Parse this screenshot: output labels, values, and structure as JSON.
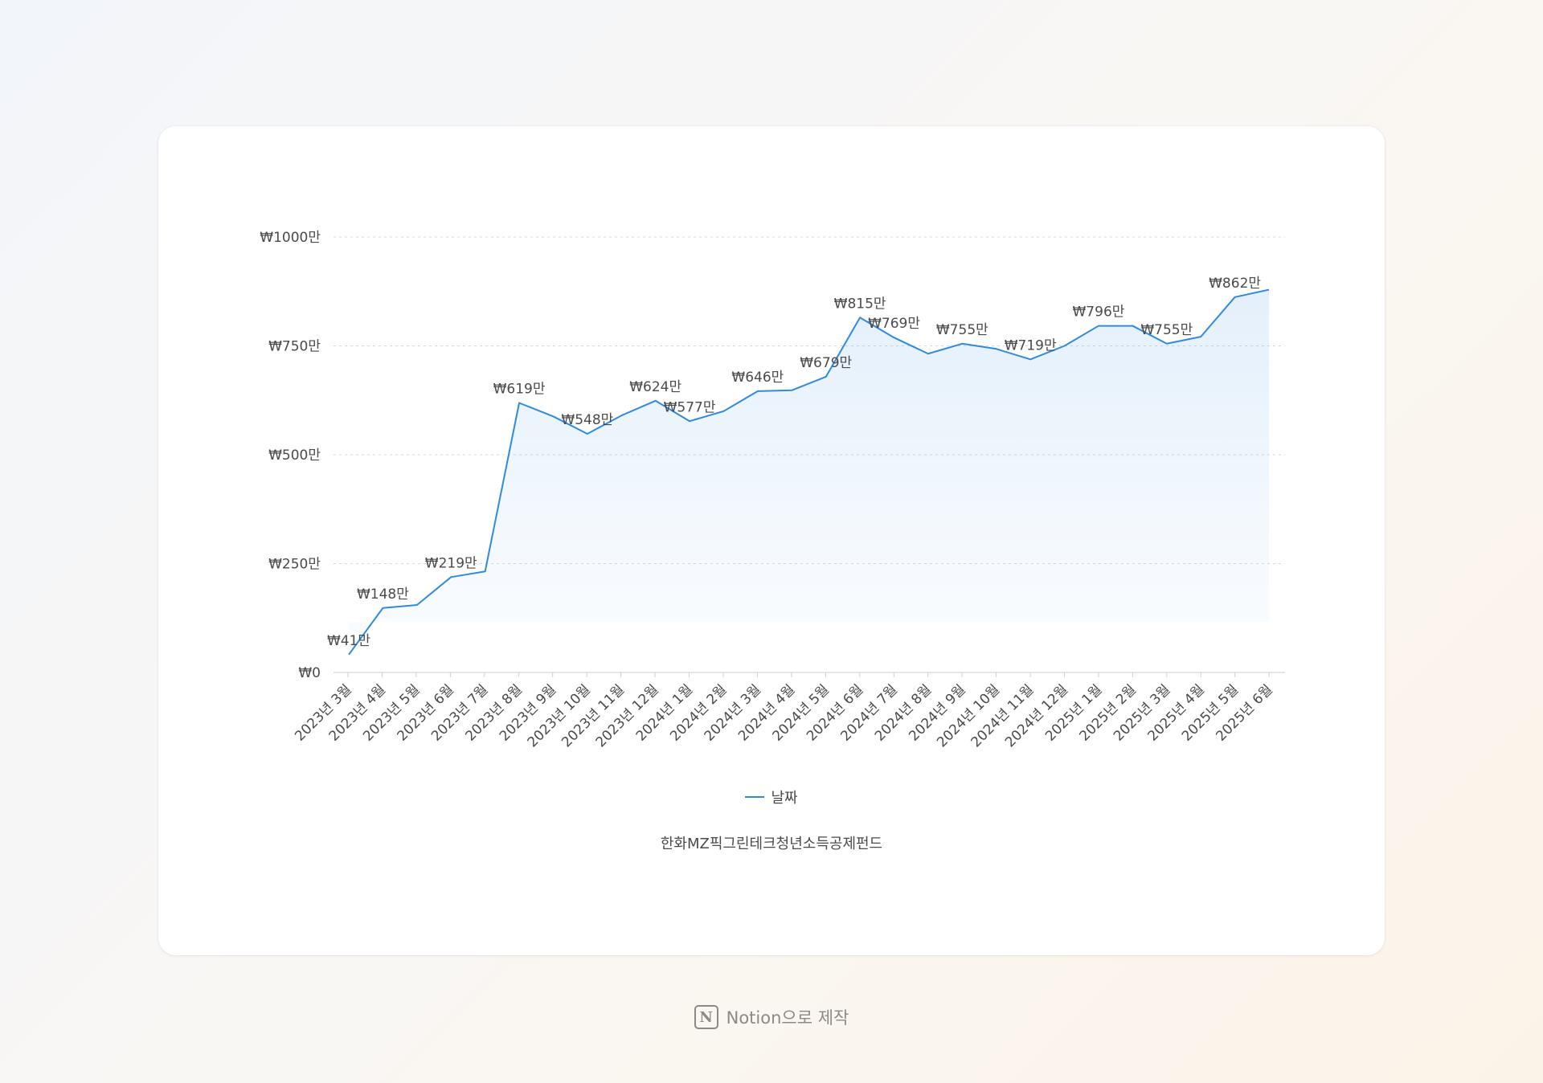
{
  "chart_data": {
    "type": "area",
    "title": "",
    "caption": "한화MZ픽그린테크청년소득공제펀드",
    "legend": {
      "label": "날짜",
      "position": "bottom"
    },
    "grid": true,
    "line_color": "#2f8ae0",
    "ylim": [
      0,
      1000
    ],
    "y_ticks": [
      {
        "value": 0,
        "label": "₩0"
      },
      {
        "value": 250,
        "label": "₩250만"
      },
      {
        "value": 500,
        "label": "₩500만"
      },
      {
        "value": 750,
        "label": "₩750만"
      },
      {
        "value": 1000,
        "label": "₩1000만"
      }
    ],
    "categories": [
      "2023년 3월",
      "2023년 4월",
      "2023년 5월",
      "2023년 6월",
      "2023년 7월",
      "2023년 8월",
      "2023년 9월",
      "2023년 10월",
      "2023년 11월",
      "2023년 12월",
      "2024년 1월",
      "2024년 2월",
      "2024년 3월",
      "2024년 4월",
      "2024년 5월",
      "2024년 6월",
      "2024년 7월",
      "2024년 8월",
      "2024년 9월",
      "2024년 10월",
      "2024년 11월",
      "2024년 12월",
      "2025년 1월",
      "2025년 2월",
      "2025년 3월",
      "2025년 4월",
      "2025년 5월",
      "2025년 6월"
    ],
    "points": [
      {
        "x": "2023년 3월",
        "y": 41,
        "label": "₩41만"
      },
      {
        "x": "2023년 4월",
        "y": 148,
        "label": "₩148만"
      },
      {
        "x": "2023년 4월",
        "y": 155,
        "label": ""
      },
      {
        "x": "2023년 5월",
        "y": 219,
        "label": "₩219만"
      },
      {
        "x": "2023년 6월",
        "y": 232,
        "label": ""
      },
      {
        "x": "2023년 7월",
        "y": 619,
        "label": "₩619만"
      },
      {
        "x": "2023년 8월",
        "y": 588,
        "label": ""
      },
      {
        "x": "2023년 9월",
        "y": 548,
        "label": "₩548만"
      },
      {
        "x": "2023년 10월",
        "y": 590,
        "label": ""
      },
      {
        "x": "2023년 11월",
        "y": 624,
        "label": "₩624만"
      },
      {
        "x": "2023년 12월",
        "y": 577,
        "label": "₩577만"
      },
      {
        "x": "2024년 1월",
        "y": 600,
        "label": ""
      },
      {
        "x": "2024년 2월",
        "y": 646,
        "label": "₩646만"
      },
      {
        "x": "2024년 3월",
        "y": 648,
        "label": ""
      },
      {
        "x": "2024년 4월",
        "y": 679,
        "label": "₩679만"
      },
      {
        "x": "2024년 5월",
        "y": 815,
        "label": "₩815만"
      },
      {
        "x": "2024년 6월",
        "y": 769,
        "label": "₩769만"
      },
      {
        "x": "2024년 7월",
        "y": 732,
        "label": ""
      },
      {
        "x": "2024년 8월",
        "y": 755,
        "label": "₩755만"
      },
      {
        "x": "2024년 9월",
        "y": 743,
        "label": ""
      },
      {
        "x": "2024년 10월",
        "y": 719,
        "label": "₩719만"
      },
      {
        "x": "2024년 11월",
        "y": 750,
        "label": ""
      },
      {
        "x": "2024년 12월",
        "y": 796,
        "label": "₩796만"
      },
      {
        "x": "2025년 1월",
        "y": 796,
        "label": ""
      },
      {
        "x": "2025년 2월",
        "y": 755,
        "label": "₩755만"
      },
      {
        "x": "2025년 3월",
        "y": 771,
        "label": ""
      },
      {
        "x": "2025년 4월",
        "y": 862,
        "label": "₩862만"
      },
      {
        "x": "2025년 5월",
        "y": 879,
        "label": ""
      }
    ]
  },
  "footer": {
    "text": "Notion으로 제작",
    "logo_letter": "N"
  }
}
